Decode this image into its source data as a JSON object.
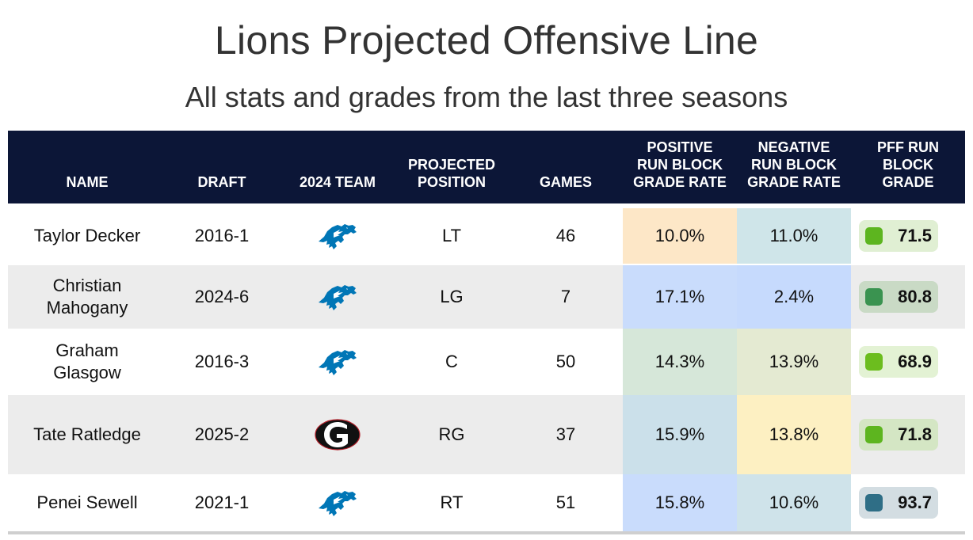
{
  "title": "Lions Projected Offensive Line",
  "subtitle": "All stats and grades from the last three seasons",
  "columns": {
    "name": "NAME",
    "draft": "DRAFT",
    "team": "2024 TEAM",
    "position_l1": "PROJECTED",
    "position_l2": "POSITION",
    "games": "GAMES",
    "pos_l1": "POSITIVE",
    "pos_l2": "RUN BLOCK",
    "pos_l3": "GRADE RATE",
    "neg_l1": "NEGATIVE",
    "neg_l2": "RUN BLOCK",
    "neg_l3": "GRADE RATE",
    "grade_l1": "PFF RUN",
    "grade_l2": "BLOCK",
    "grade_l3": "GRADE"
  },
  "rows": [
    {
      "name_l1": "Taylor Decker",
      "name_l2": "",
      "draft": "2016-1",
      "team_icon": "lions-logo-icon",
      "position": "LT",
      "games": "46",
      "positive": "10.0%",
      "positive_bg": "#fde7c7",
      "negative": "11.0%",
      "negative_bg": "#cfe5e9",
      "grade": "71.5",
      "grade_color": "#5db51f",
      "grade_bg": "#e0efd3"
    },
    {
      "name_l1": "Christian",
      "name_l2": "Mahogany",
      "draft": "2024-6",
      "team_icon": "lions-logo-icon",
      "position": "LG",
      "games": "7",
      "positive": "17.1%",
      "positive_bg": "#c9dcfc",
      "negative": "2.4%",
      "negative_bg": "#c6dafd",
      "grade": "80.8",
      "grade_color": "#3a9350",
      "grade_bg": "#c9dac5"
    },
    {
      "name_l1": "Graham",
      "name_l2": "Glasgow",
      "draft": "2016-3",
      "team_icon": "lions-logo-icon",
      "position": "C",
      "games": "50",
      "positive": "14.3%",
      "positive_bg": "#d6e7d9",
      "negative": "13.9%",
      "negative_bg": "#e4ead2",
      "grade": "68.9",
      "grade_color": "#6cbd1e",
      "grade_bg": "#e3f2d4"
    },
    {
      "name_l1": "Tate Ratledge",
      "name_l2": "",
      "draft": "2025-2",
      "team_icon": "georgia-logo-icon",
      "position": "RG",
      "games": "37",
      "positive": "15.9%",
      "positive_bg": "#cbe0ea",
      "negative": "13.8%",
      "negative_bg": "#fdf0c2",
      "grade": "71.8",
      "grade_color": "#5db51f",
      "grade_bg": "#d4e6c4"
    },
    {
      "name_l1": "Penei Sewell",
      "name_l2": "",
      "draft": "2021-1",
      "team_icon": "lions-logo-icon",
      "position": "RT",
      "games": "51",
      "positive": "15.8%",
      "positive_bg": "#c9dcfc",
      "negative": "10.6%",
      "negative_bg": "#cfe3ea",
      "grade": "93.7",
      "grade_color": "#2f6e86",
      "grade_bg": "#d3dde2"
    }
  ],
  "colors": {
    "header_bg": "#0c1637",
    "stripe_bg": "#ececec",
    "lions_blue": "#0076b6"
  }
}
